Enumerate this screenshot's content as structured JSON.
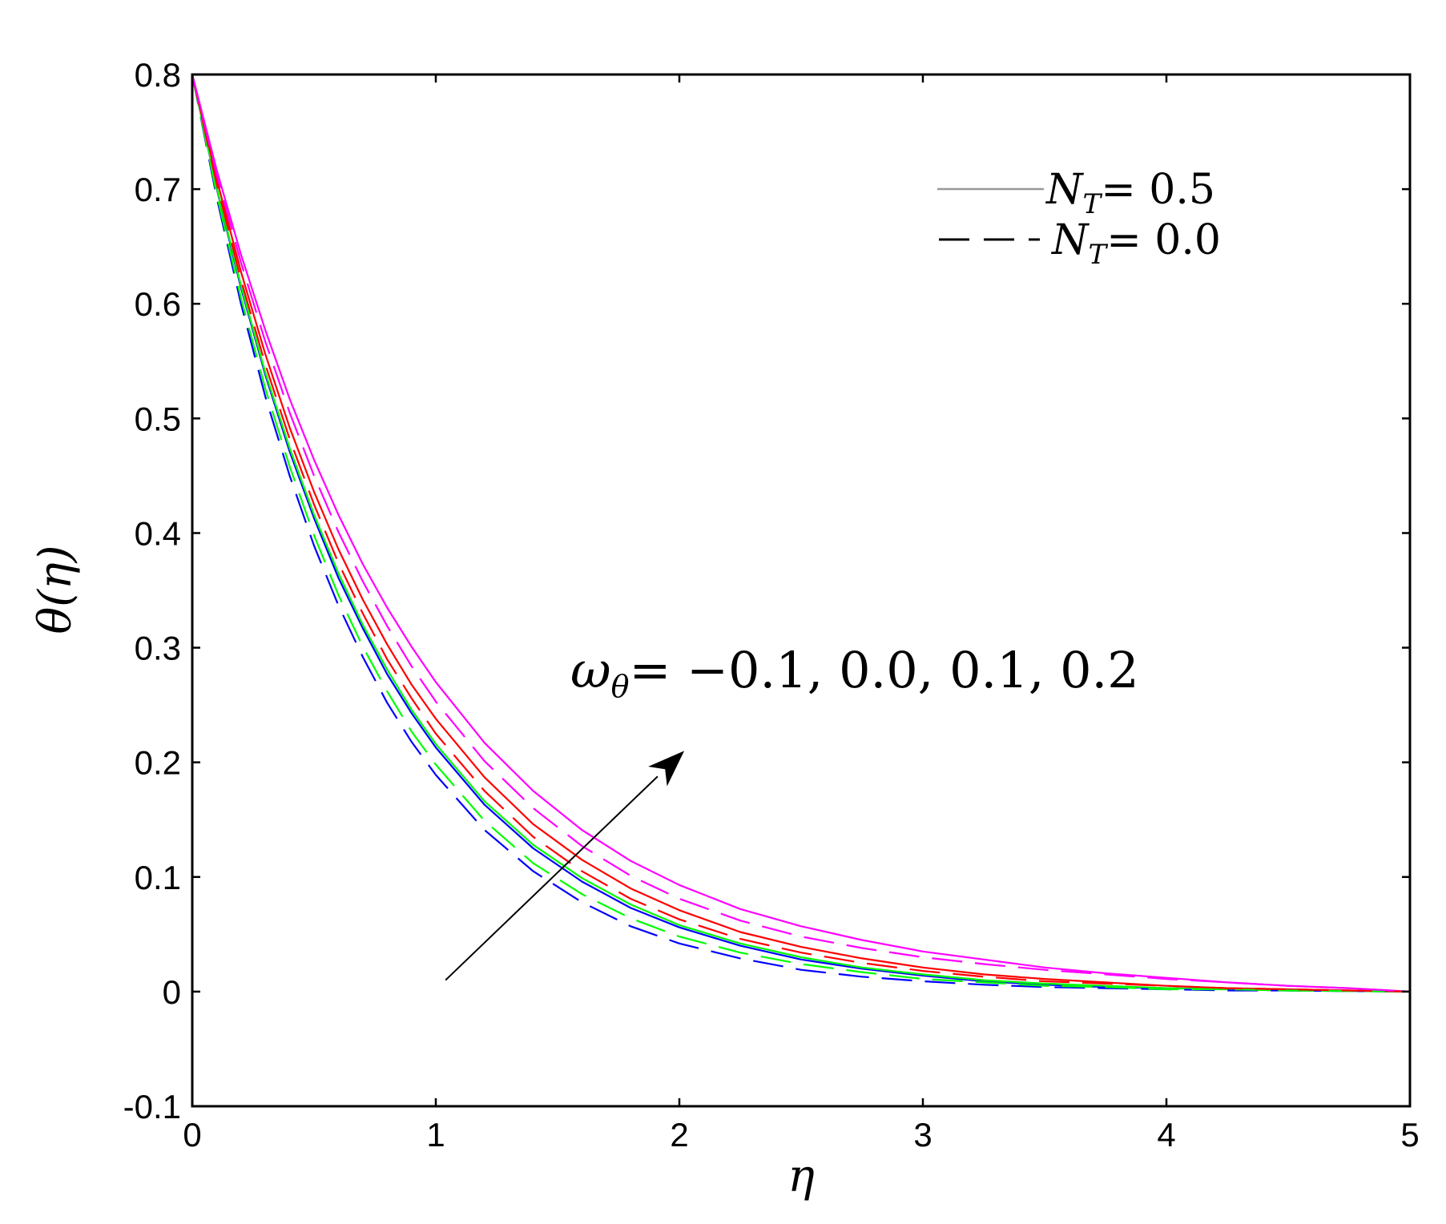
{
  "chart_data": {
    "type": "line",
    "xlabel": "η",
    "ylabel": "θ(η)",
    "xlim": [
      0,
      5
    ],
    "ylim": [
      -0.1,
      0.8
    ],
    "xticks": [
      "0",
      "1",
      "2",
      "3",
      "4",
      "5"
    ],
    "yticks": [
      "-0.1",
      "0",
      "0.1",
      "0.2",
      "0.3",
      "0.4",
      "0.5",
      "0.6",
      "0.7",
      "0.8"
    ],
    "grid": false,
    "legend_position": "top-right",
    "legend": [
      {
        "symbol": "N",
        "subscript": "T",
        "value": "= 0.5",
        "style": "solid"
      },
      {
        "symbol": "N",
        "subscript": "T",
        "value": "= 0.0",
        "style": "dashed"
      }
    ],
    "annotation": {
      "symbol": "ω",
      "subscript": "θ",
      "text": "= −0.1, 0.0, 0.1, 0.2",
      "arrow_from": [
        1.04,
        0.01
      ],
      "arrow_to": [
        2.02,
        0.21
      ]
    },
    "x": [
      0,
      0.1,
      0.2,
      0.3,
      0.4,
      0.5,
      0.6,
      0.7,
      0.8,
      0.9,
      1.0,
      1.2,
      1.4,
      1.6,
      1.8,
      2.0,
      2.25,
      2.5,
      2.75,
      3.0,
      3.25,
      3.5,
      3.75,
      4.0,
      4.25,
      4.5,
      4.75,
      5.0
    ],
    "series": [
      {
        "color": "#0000ff",
        "style": "solid",
        "values": [
          0.8,
          0.701,
          0.614,
          0.538,
          0.471,
          0.413,
          0.361,
          0.317,
          0.277,
          0.243,
          0.213,
          0.163,
          0.125,
          0.096,
          0.073,
          0.056,
          0.04,
          0.028,
          0.02,
          0.014,
          0.009,
          0.006,
          0.004,
          0.003,
          0.002,
          0.001,
          0.0005,
          0.0
        ]
      },
      {
        "color": "#00ff00",
        "style": "solid",
        "values": [
          0.8,
          0.702,
          0.616,
          0.54,
          0.474,
          0.416,
          0.365,
          0.32,
          0.281,
          0.246,
          0.216,
          0.166,
          0.128,
          0.099,
          0.076,
          0.058,
          0.042,
          0.03,
          0.021,
          0.015,
          0.01,
          0.007,
          0.005,
          0.003,
          0.002,
          0.001,
          0.0005,
          0.0
        ]
      },
      {
        "color": "#ff0000",
        "style": "solid",
        "values": [
          0.8,
          0.709,
          0.628,
          0.556,
          0.492,
          0.436,
          0.386,
          0.342,
          0.303,
          0.268,
          0.238,
          0.187,
          0.146,
          0.115,
          0.09,
          0.071,
          0.052,
          0.039,
          0.029,
          0.021,
          0.015,
          0.011,
          0.008,
          0.005,
          0.003,
          0.002,
          0.001,
          0.0
        ]
      },
      {
        "color": "#ff00ff",
        "style": "solid",
        "values": [
          0.8,
          0.717,
          0.643,
          0.577,
          0.517,
          0.464,
          0.416,
          0.373,
          0.335,
          0.301,
          0.27,
          0.217,
          0.175,
          0.141,
          0.114,
          0.093,
          0.072,
          0.057,
          0.045,
          0.035,
          0.028,
          0.021,
          0.016,
          0.012,
          0.008,
          0.005,
          0.003,
          0.0
        ]
      },
      {
        "color": "#0000ff",
        "style": "dashed",
        "values": [
          0.8,
          0.693,
          0.6,
          0.519,
          0.45,
          0.389,
          0.337,
          0.292,
          0.252,
          0.218,
          0.189,
          0.141,
          0.105,
          0.078,
          0.057,
          0.042,
          0.029,
          0.019,
          0.013,
          0.009,
          0.006,
          0.004,
          0.003,
          0.002,
          0.001,
          0.001,
          0.0005,
          0.0
        ]
      },
      {
        "color": "#00ff00",
        "style": "dashed",
        "values": [
          0.8,
          0.696,
          0.605,
          0.526,
          0.458,
          0.398,
          0.346,
          0.301,
          0.262,
          0.227,
          0.198,
          0.149,
          0.112,
          0.085,
          0.064,
          0.048,
          0.034,
          0.024,
          0.017,
          0.011,
          0.008,
          0.005,
          0.004,
          0.002,
          0.002,
          0.001,
          0.0005,
          0.0
        ]
      },
      {
        "color": "#ff0000",
        "style": "dashed",
        "values": [
          0.8,
          0.705,
          0.621,
          0.547,
          0.482,
          0.425,
          0.374,
          0.33,
          0.29,
          0.256,
          0.225,
          0.175,
          0.135,
          0.105,
          0.081,
          0.063,
          0.046,
          0.034,
          0.025,
          0.018,
          0.013,
          0.009,
          0.007,
          0.005,
          0.003,
          0.002,
          0.001,
          0.0
        ]
      },
      {
        "color": "#ff00ff",
        "style": "dashed",
        "values": [
          0.8,
          0.713,
          0.636,
          0.567,
          0.505,
          0.45,
          0.401,
          0.358,
          0.319,
          0.284,
          0.253,
          0.201,
          0.16,
          0.127,
          0.101,
          0.081,
          0.062,
          0.048,
          0.038,
          0.03,
          0.024,
          0.019,
          0.015,
          0.011,
          0.008,
          0.005,
          0.003,
          0.0
        ]
      }
    ]
  }
}
